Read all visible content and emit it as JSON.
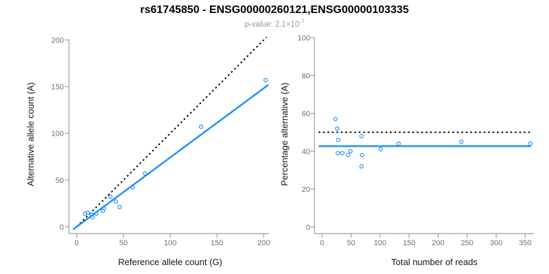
{
  "header": {
    "title": "rs61745850 - ENSG00000260121,ENSG00000103335",
    "subtitle_prefix": "p-value: 2.1×10",
    "subtitle_exponent": "-7"
  },
  "colors": {
    "blue": "#1E90FF",
    "black": "#000000",
    "axis_line": "#9C9C9C",
    "tick_label": "#6E6E6E",
    "axis_title": "#141414",
    "subtitle_text": "#999999"
  },
  "chart_data": [
    {
      "id": "ref-vs-alt-count",
      "type": "scatter",
      "xlabel": "Reference allele count (G)",
      "ylabel": "Alternative allele count (A)",
      "xlim": [
        0,
        200
      ],
      "ylim": [
        0,
        200
      ],
      "xticks": [
        0,
        50,
        100,
        150,
        200
      ],
      "yticks": [
        0,
        50,
        100,
        150,
        200
      ],
      "grid": false,
      "marker": "open-circle",
      "points": [
        [
          9,
          14
        ],
        [
          12,
          15
        ],
        [
          16,
          13
        ],
        [
          17,
          10
        ],
        [
          21,
          14
        ],
        [
          28,
          17
        ],
        [
          29,
          20
        ],
        [
          36,
          32
        ],
        [
          42,
          27
        ],
        [
          46,
          21
        ],
        [
          60,
          42
        ],
        [
          73,
          57
        ],
        [
          133,
          107
        ],
        [
          202,
          157
        ]
      ],
      "lines": [
        {
          "name": "identity-line",
          "x1": 0,
          "y1": 0,
          "x2": 203,
          "y2": 203,
          "dashed": true,
          "color": "black"
        },
        {
          "name": "fit-line",
          "x1": -4,
          "y1": -3,
          "x2": 205,
          "y2": 152,
          "dashed": false,
          "color": "blue"
        }
      ]
    },
    {
      "id": "reads-vs-percentage",
      "type": "scatter",
      "xlabel": "Total number of reads",
      "ylabel": "Percentage alternative (A)",
      "xlim": [
        0,
        350
      ],
      "ylim": [
        0,
        100
      ],
      "xticks": [
        0,
        50,
        100,
        150,
        200,
        250,
        300,
        350
      ],
      "yticks": [
        0,
        20,
        40,
        60,
        80,
        100
      ],
      "grid": false,
      "marker": "open-circle",
      "points": [
        [
          23,
          57
        ],
        [
          26,
          52
        ],
        [
          28,
          46
        ],
        [
          27,
          39
        ],
        [
          35,
          39
        ],
        [
          45,
          38
        ],
        [
          49,
          40
        ],
        [
          68,
          48
        ],
        [
          69,
          38
        ],
        [
          68,
          32
        ],
        [
          101,
          41
        ],
        [
          132,
          44
        ],
        [
          240,
          45
        ],
        [
          359,
          44
        ]
      ],
      "lines": [
        {
          "name": "expected-50-percent-line",
          "x1": -6,
          "y1": 50,
          "x2": 358,
          "y2": 50,
          "dashed": true,
          "color": "black"
        },
        {
          "name": "mean-percentage-line",
          "x1": -6,
          "y1": 42.7,
          "x2": 360,
          "y2": 42.7,
          "dashed": false,
          "color": "blue"
        }
      ]
    }
  ]
}
